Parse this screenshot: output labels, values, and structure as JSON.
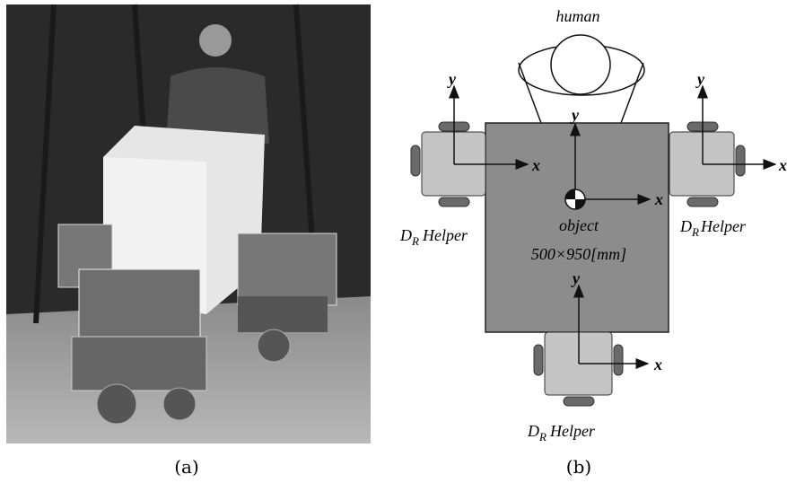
{
  "photo": {
    "caption": "(a)"
  },
  "diagram": {
    "caption": "(b)",
    "human": "human",
    "object": {
      "label": "object",
      "size": "500×950[mm]",
      "axes": {
        "x": "x",
        "y": "y"
      }
    },
    "helpers": [
      {
        "symbol": "D",
        "subscript": "R",
        "name": "Helper",
        "axes": {
          "x": "x",
          "y": "y"
        }
      },
      {
        "symbol": "D",
        "subscript": "R",
        "name": "Helper",
        "axes": {
          "x": "x",
          "y": "y"
        }
      },
      {
        "symbol": "D",
        "subscript": "R",
        "name": "Helper",
        "axes": {
          "x": "x",
          "y": "y"
        }
      }
    ]
  }
}
